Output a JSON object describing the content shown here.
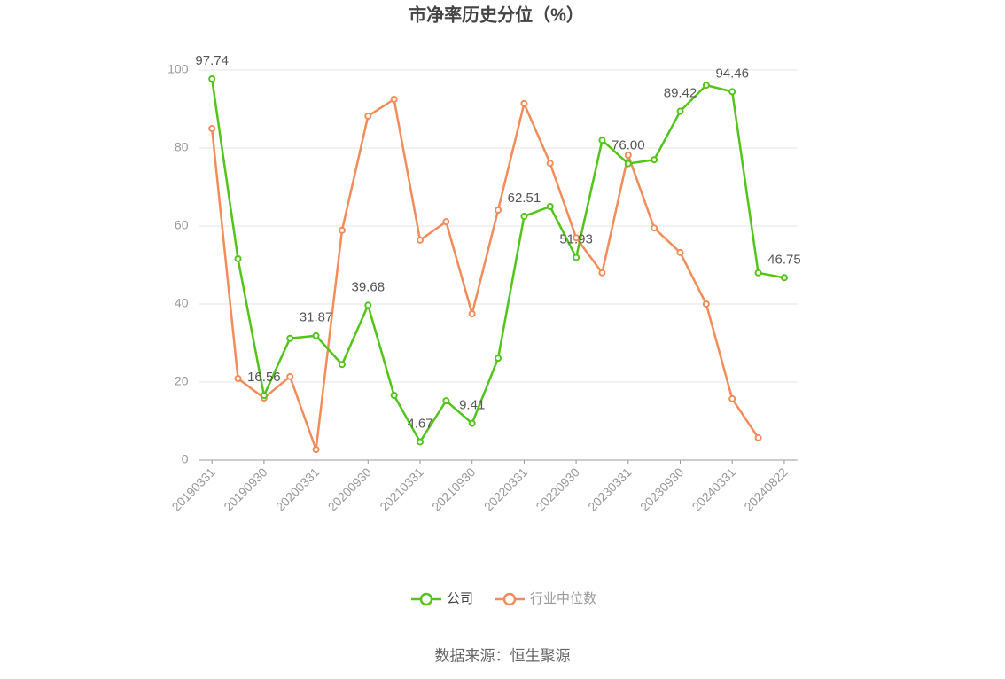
{
  "chart_data": {
    "type": "line",
    "title": "市净率历史分位（%）",
    "categories": [
      "20190331",
      null,
      "20190930",
      null,
      "20200331",
      null,
      "20200930",
      null,
      "20210331",
      null,
      "20210930",
      null,
      "20220331",
      null,
      "20220930",
      null,
      "20230331",
      null,
      "20230930",
      null,
      "20240331",
      null,
      "20240822"
    ],
    "series": [
      {
        "name": "公司",
        "color": "#52c41a",
        "values": [
          97.74,
          51.6,
          16.56,
          31.2,
          31.87,
          24.5,
          39.68,
          16.6,
          4.67,
          15.2,
          9.41,
          26.1,
          62.51,
          65.0,
          51.93,
          82.0,
          76.0,
          77.0,
          89.42,
          96.1,
          94.46,
          48.0,
          46.75
        ],
        "value_labels": [
          "97.74",
          null,
          "16.56",
          null,
          "31.87",
          null,
          "39.68",
          null,
          "4.67",
          null,
          "9.41",
          null,
          "62.51",
          null,
          "51.93",
          null,
          "76.00",
          null,
          "89.42",
          null,
          "94.46",
          null,
          "46.75"
        ]
      },
      {
        "name": "行业中位数",
        "color": "#f28c5a",
        "values": [
          85.0,
          20.9,
          15.9,
          21.4,
          2.7,
          58.9,
          88.2,
          92.5,
          56.4,
          61.1,
          37.5,
          64.1,
          91.4,
          76.1,
          57.0,
          48.0,
          78.2,
          59.5,
          53.2,
          40.0,
          15.7,
          5.7,
          null
        ]
      }
    ],
    "ylim": [
      0,
      100
    ],
    "yticks": [
      0,
      20,
      40,
      60,
      80,
      100
    ],
    "grid": true,
    "legend": "bottom",
    "source": "数据来源：恒生聚源"
  }
}
